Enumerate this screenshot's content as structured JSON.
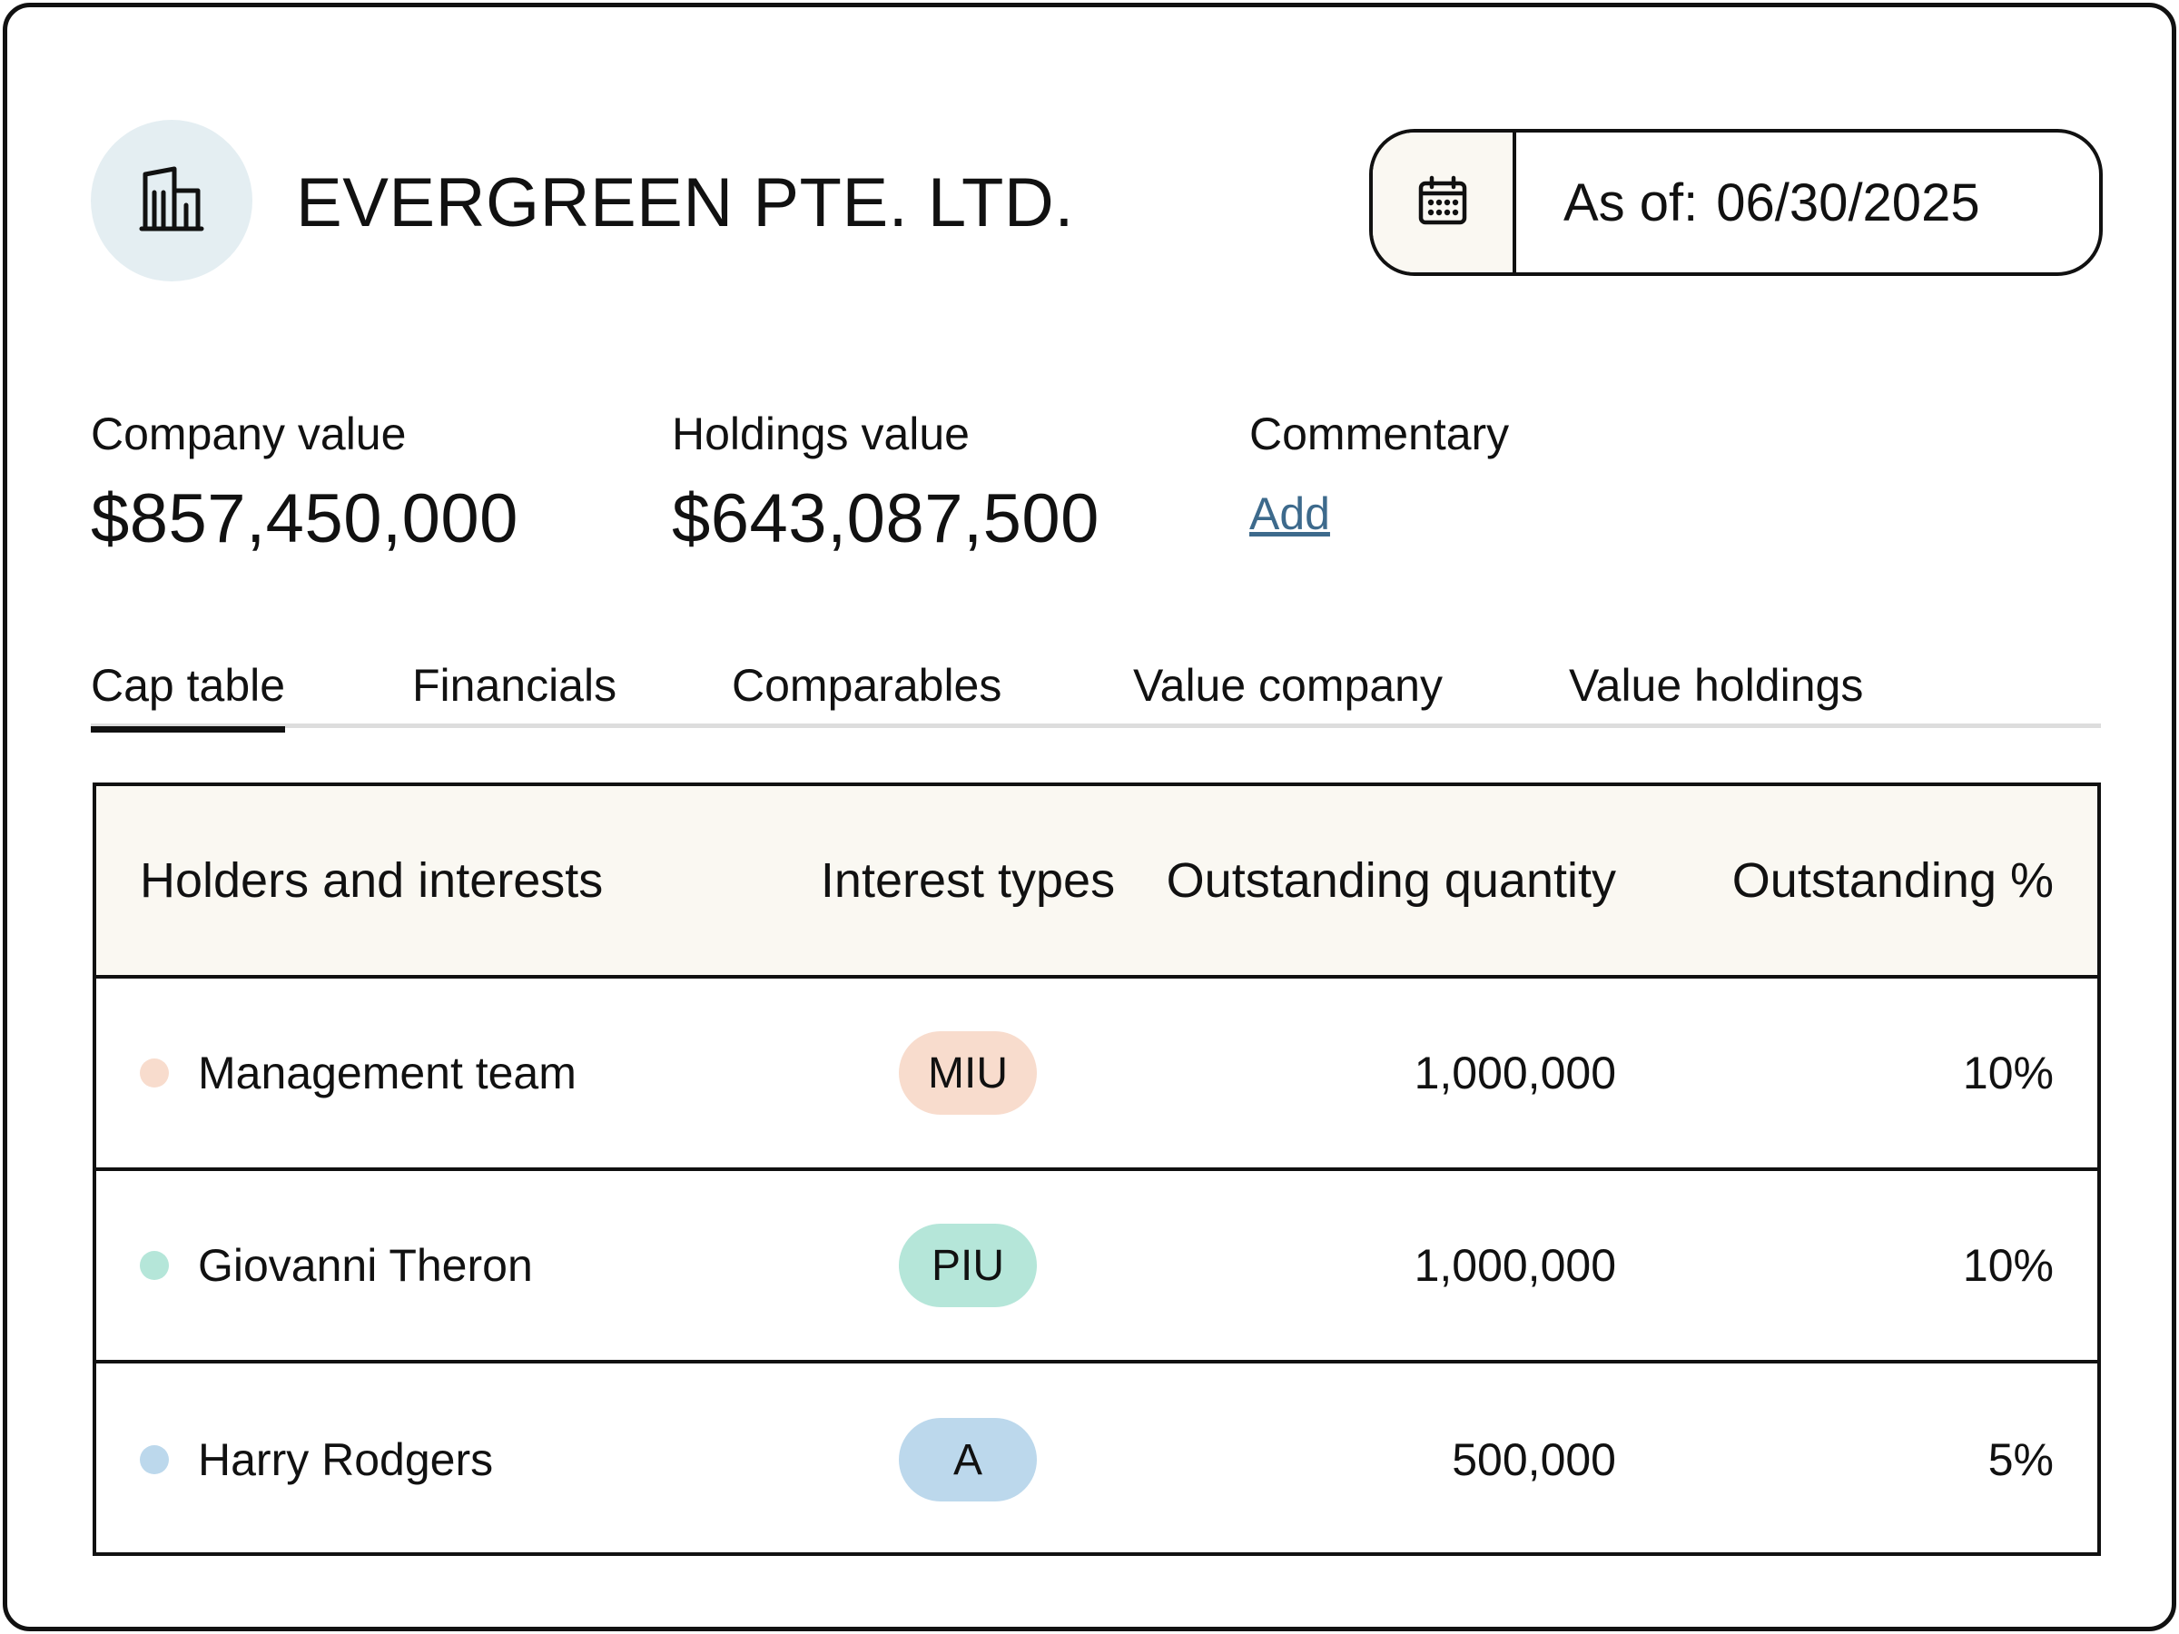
{
  "header": {
    "company_name": "EVERGREEN PTE. LTD.",
    "avatar_icon": "building-icon",
    "date_icon": "calendar-icon",
    "as_of_label": "As of:",
    "as_of_date": "06/30/2025"
  },
  "metrics": {
    "company_value": {
      "label": "Company value",
      "value": "$857,450,000"
    },
    "holdings_value": {
      "label": "Holdings value",
      "value": "$643,087,500"
    },
    "commentary": {
      "label": "Commentary",
      "action": "Add"
    }
  },
  "tabs": [
    {
      "label": "Cap table",
      "active": true
    },
    {
      "label": "Financials",
      "active": false
    },
    {
      "label": "Comparables",
      "active": false
    },
    {
      "label": "Value company",
      "active": false
    },
    {
      "label": "Value holdings",
      "active": false
    }
  ],
  "table": {
    "columns": [
      "Holders and interests",
      "Interest types",
      "Outstanding quantity",
      "Outstanding %"
    ],
    "rows": [
      {
        "holder": "Management team",
        "type": "MIU",
        "quantity": "1,000,000",
        "percent": "10%",
        "dot_color": "#f8dccd",
        "badge_color": "#f8dccd"
      },
      {
        "holder": "Giovanni Theron",
        "type": "PIU",
        "quantity": "1,000,000",
        "percent": "10%",
        "dot_color": "#b5e6d9",
        "badge_color": "#b5e6d9"
      },
      {
        "holder": "Harry Rodgers",
        "type": "A",
        "quantity": "500,000",
        "percent": "5%",
        "dot_color": "#bcd8ec",
        "badge_color": "#bcd8ec"
      }
    ]
  },
  "colors": {
    "link": "#3d6a8c",
    "header_bg": "#faf8f2",
    "avatar_bg": "#e4eef2"
  }
}
